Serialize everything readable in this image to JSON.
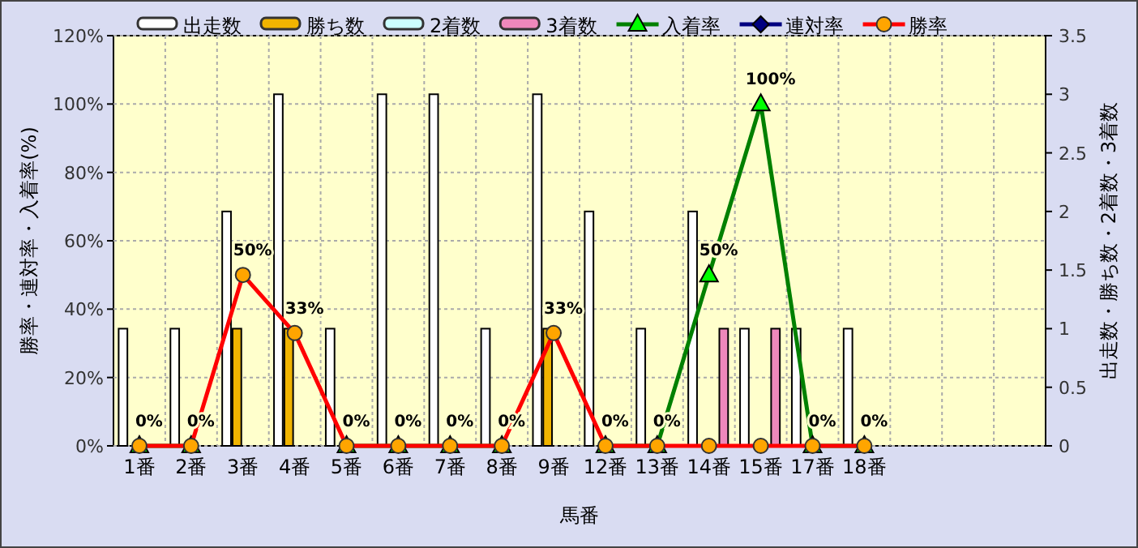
{
  "chart_data": {
    "type": "bar",
    "xlabel": "馬番",
    "ylabel": "勝率・連対率・入着率(%)",
    "y2label": "出走数・勝ち数・2着数・3着数",
    "categories": [
      "1番",
      "2番",
      "3番",
      "4番",
      "5番",
      "6番",
      "7番",
      "8番",
      "9番",
      "12番",
      "13番",
      "14番",
      "15番",
      "17番",
      "18番",
      null,
      null,
      null
    ],
    "series": [
      {
        "name": "出走数",
        "axis": "y2",
        "color": "#ffffff",
        "values": [
          1,
          1,
          2,
          3,
          1,
          3,
          3,
          1,
          3,
          2,
          1,
          2,
          1,
          1,
          1,
          null,
          null,
          null
        ]
      },
      {
        "name": "勝ち数",
        "axis": "y2",
        "color": "#f0b400",
        "values": [
          0,
          0,
          1,
          1,
          0,
          0,
          0,
          0,
          1,
          0,
          0,
          0,
          0,
          0,
          0,
          null,
          null,
          null
        ]
      },
      {
        "name": "2着数",
        "axis": "y2",
        "color": "#ccffff",
        "values": [
          0,
          0,
          0,
          0,
          0,
          0,
          0,
          0,
          0,
          0,
          0,
          0,
          0,
          0,
          0,
          null,
          null,
          null
        ]
      },
      {
        "name": "3着数",
        "axis": "y2",
        "color": "#ee88bb",
        "values": [
          0,
          0,
          0,
          0,
          0,
          0,
          0,
          0,
          0,
          0,
          0,
          1,
          1,
          0,
          0,
          null,
          null,
          null
        ]
      },
      {
        "name": "入着率",
        "type": "line",
        "color": "#008000",
        "colors": [
          "#00ff00",
          "#00ff00",
          null,
          null,
          "#00ff00",
          "#00ff00",
          "#00ff00",
          "#00ff00",
          null,
          "#00ff00",
          "#00ff00",
          "#00ff00",
          "#00ff00",
          "#00ff00",
          "#00ff00",
          null,
          null,
          null
        ],
        "marker": "triangle",
        "values": [
          0,
          0,
          null,
          null,
          0,
          0,
          0,
          0,
          null,
          0,
          0,
          50,
          100,
          0,
          0,
          null,
          null,
          null
        ],
        "value_labels": [
          null,
          null,
          null,
          null,
          null,
          null,
          null,
          null,
          null,
          null,
          null,
          "50%",
          "100%",
          null,
          null,
          null,
          null,
          null
        ]
      },
      {
        "name": "連対率",
        "type": "line",
        "color": "#000080",
        "marker": "diamond",
        "values": [
          null,
          null,
          null,
          null,
          null,
          null,
          null,
          null,
          null,
          null,
          null,
          null,
          null,
          null,
          null,
          null,
          null,
          null
        ]
      },
      {
        "name": "勝率",
        "type": "line",
        "color": "#ff0000",
        "colors": [
          "#ffa500",
          "#ffa500",
          "#ffa500",
          "#ffa500",
          "#ffa500",
          "#ffa500",
          "#ffa500",
          "#ffa500",
          "#ffa500",
          "#ffa500",
          "#ffa500",
          "#ffa500",
          "#ffa500",
          "#ffa500",
          "#ffa500",
          null,
          null,
          null
        ],
        "marker": "circle",
        "values": [
          0,
          0,
          50,
          33,
          0,
          0,
          0,
          0,
          33,
          0,
          0,
          0,
          0,
          0,
          0,
          null,
          null,
          null
        ],
        "value_labels": [
          "0%",
          "0%",
          "50%",
          "33%",
          "0%",
          "0%",
          "0%",
          "0%",
          "33%",
          "0%",
          "0%",
          null,
          null,
          "0%",
          "0%",
          null,
          null,
          null
        ]
      }
    ],
    "ylim": [
      0,
      120
    ],
    "yticks": [
      {
        "value": 0,
        "label": "0%"
      },
      {
        "value": 20,
        "label": "20%"
      },
      {
        "value": 40,
        "label": "40%"
      },
      {
        "value": 60,
        "label": "60%"
      },
      {
        "value": 80,
        "label": "80%"
      },
      {
        "value": 100,
        "label": "100%"
      },
      {
        "value": 120,
        "label": "120%"
      }
    ],
    "y2lim": [
      0,
      3.5
    ],
    "y2ticks": [
      0,
      0.5,
      1,
      1.5,
      2,
      2.5,
      3,
      3.5
    ],
    "grid": true,
    "legend": "top",
    "line_style": "solid"
  }
}
